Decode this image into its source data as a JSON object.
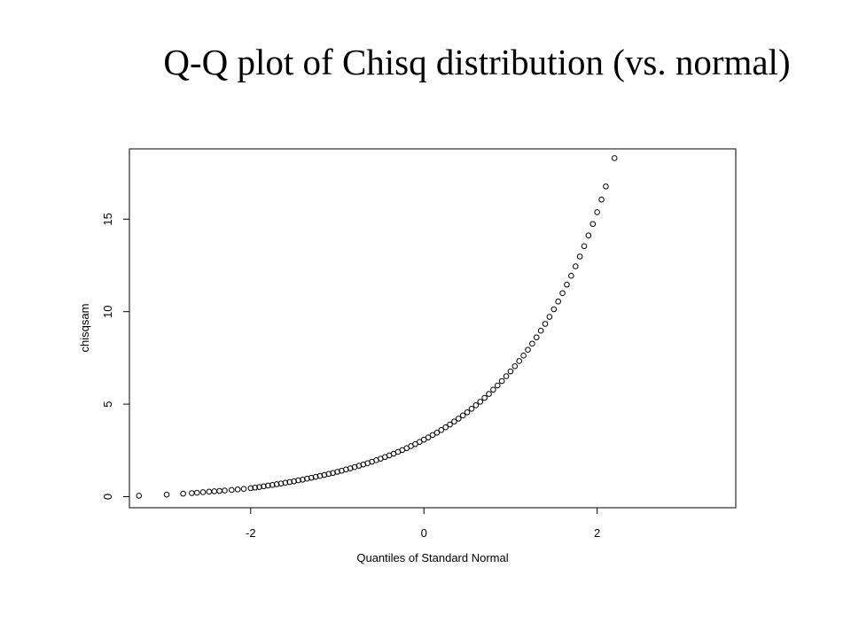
{
  "chart_data": {
    "type": "scatter",
    "title": "Q-Q plot of Chisq distribution (vs. normal)",
    "xlabel": "Quantiles of Standard Normal",
    "ylabel": "chisqsam",
    "xlim": [
      -3.4,
      3.6
    ],
    "ylim": [
      -0.6,
      18.8
    ],
    "x_ticks": [
      -2,
      0,
      2
    ],
    "y_ticks": [
      0,
      5,
      10,
      15
    ],
    "grid": false,
    "legend": "none",
    "marker": "open-circle",
    "color": "#000000",
    "points": [
      [
        -3.29,
        0.05
      ],
      [
        -2.97,
        0.11
      ],
      [
        -2.78,
        0.16
      ],
      [
        -2.68,
        0.19
      ],
      [
        -2.62,
        0.21
      ],
      [
        -2.55,
        0.24
      ],
      [
        -2.48,
        0.27
      ],
      [
        -2.42,
        0.29
      ],
      [
        -2.36,
        0.31
      ],
      [
        -2.3,
        0.33
      ],
      [
        -2.22,
        0.36
      ],
      [
        -2.15,
        0.39
      ],
      [
        -2.08,
        0.42
      ],
      [
        -2.0,
        0.46
      ],
      [
        -1.95,
        0.49
      ],
      [
        -1.9,
        0.52
      ],
      [
        -1.85,
        0.56
      ],
      [
        -1.8,
        0.6
      ],
      [
        -1.75,
        0.63
      ],
      [
        -1.7,
        0.67
      ],
      [
        -1.65,
        0.71
      ],
      [
        -1.6,
        0.75
      ],
      [
        -1.55,
        0.79
      ],
      [
        -1.5,
        0.83
      ],
      [
        -1.45,
        0.88
      ],
      [
        -1.4,
        0.92
      ],
      [
        -1.35,
        0.97
      ],
      [
        -1.3,
        1.02
      ],
      [
        -1.25,
        1.07
      ],
      [
        -1.2,
        1.12
      ],
      [
        -1.15,
        1.17
      ],
      [
        -1.1,
        1.23
      ],
      [
        -1.05,
        1.28
      ],
      [
        -1.0,
        1.34
      ],
      [
        -0.95,
        1.4
      ],
      [
        -0.9,
        1.47
      ],
      [
        -0.85,
        1.53
      ],
      [
        -0.8,
        1.6
      ],
      [
        -0.75,
        1.67
      ],
      [
        -0.7,
        1.74
      ],
      [
        -0.65,
        1.81
      ],
      [
        -0.6,
        1.89
      ],
      [
        -0.55,
        1.97
      ],
      [
        -0.5,
        2.05
      ],
      [
        -0.45,
        2.14
      ],
      [
        -0.4,
        2.23
      ],
      [
        -0.35,
        2.32
      ],
      [
        -0.3,
        2.42
      ],
      [
        -0.25,
        2.52
      ],
      [
        -0.2,
        2.62
      ],
      [
        -0.15,
        2.73
      ],
      [
        -0.1,
        2.84
      ],
      [
        -0.05,
        2.96
      ],
      [
        0.0,
        3.08
      ],
      [
        0.05,
        3.2
      ],
      [
        0.1,
        3.33
      ],
      [
        0.15,
        3.46
      ],
      [
        0.2,
        3.6
      ],
      [
        0.25,
        3.75
      ],
      [
        0.3,
        3.9
      ],
      [
        0.35,
        4.06
      ],
      [
        0.4,
        4.22
      ],
      [
        0.45,
        4.39
      ],
      [
        0.5,
        4.56
      ],
      [
        0.55,
        4.75
      ],
      [
        0.6,
        4.94
      ],
      [
        0.65,
        5.13
      ],
      [
        0.7,
        5.34
      ],
      [
        0.75,
        5.55
      ],
      [
        0.8,
        5.78
      ],
      [
        0.85,
        6.01
      ],
      [
        0.9,
        6.25
      ],
      [
        0.95,
        6.51
      ],
      [
        1.0,
        6.77
      ],
      [
        1.05,
        7.05
      ],
      [
        1.1,
        7.33
      ],
      [
        1.15,
        7.63
      ],
      [
        1.2,
        7.94
      ],
      [
        1.25,
        8.27
      ],
      [
        1.3,
        8.61
      ],
      [
        1.35,
        8.97
      ],
      [
        1.4,
        9.34
      ],
      [
        1.45,
        9.72
      ],
      [
        1.5,
        10.13
      ],
      [
        1.55,
        10.55
      ],
      [
        1.6,
        11.0
      ],
      [
        1.65,
        11.46
      ],
      [
        1.7,
        11.94
      ],
      [
        1.75,
        12.45
      ],
      [
        1.8,
        12.98
      ],
      [
        1.85,
        13.54
      ],
      [
        1.9,
        14.12
      ],
      [
        1.95,
        14.74
      ],
      [
        2.0,
        15.38
      ],
      [
        2.05,
        16.06
      ],
      [
        2.1,
        16.77
      ],
      [
        2.2,
        18.3
      ]
    ]
  }
}
